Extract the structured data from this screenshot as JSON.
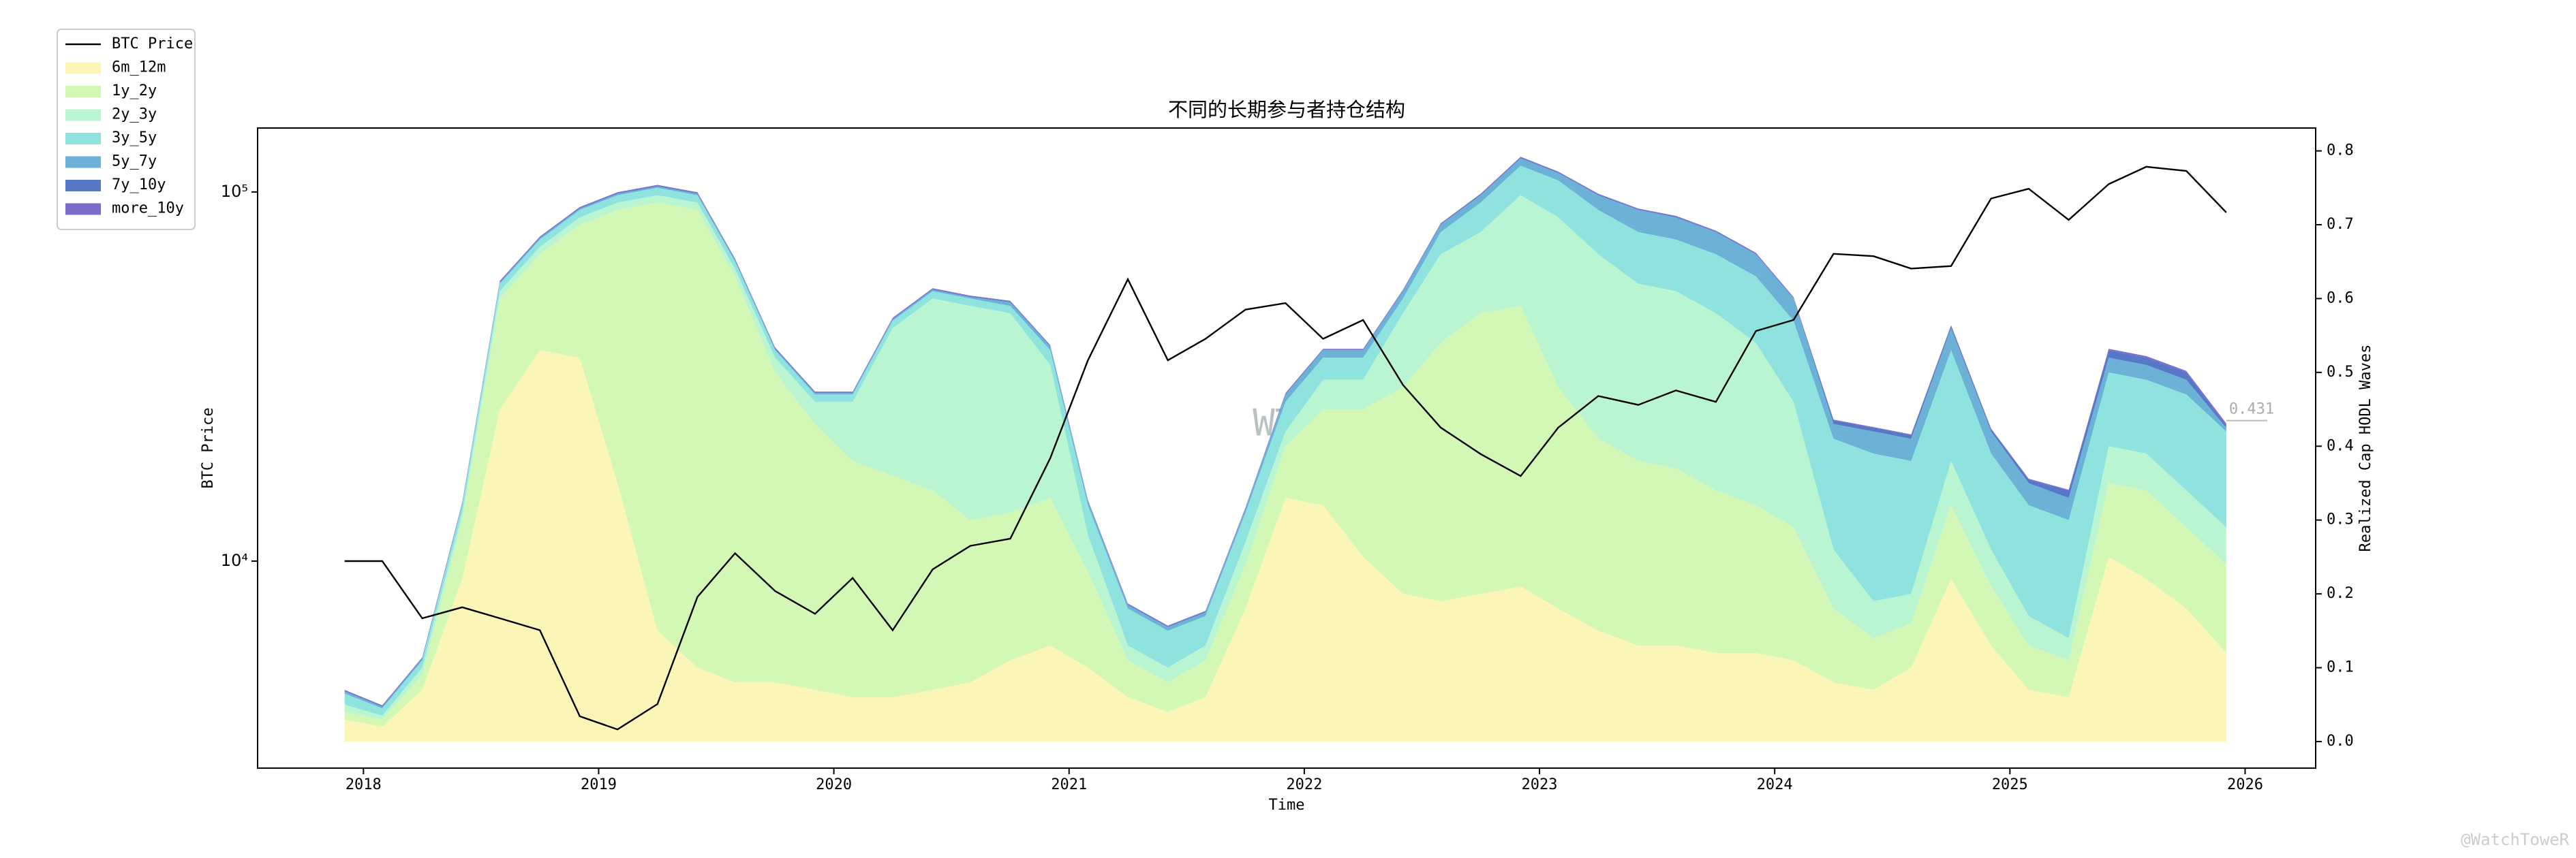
{
  "chart_data": {
    "type": "area",
    "title": "不同的长期参与者持仓结构",
    "xlabel": "Time",
    "ylabel": "BTC Price",
    "y2label": "Realized Cap HODL Waves",
    "annotation": "0.431",
    "watermark": "WTR",
    "credit": "@WatchToweR",
    "yscale": "log",
    "legend": "upper left",
    "x": [
      2017.92,
      2018.08,
      2018.25,
      2018.42,
      2018.58,
      2018.75,
      2018.92,
      2019.08,
      2019.25,
      2019.42,
      2019.58,
      2019.75,
      2019.92,
      2020.08,
      2020.25,
      2020.42,
      2020.58,
      2020.75,
      2020.92,
      2021.08,
      2021.25,
      2021.42,
      2021.58,
      2021.75,
      2021.92,
      2022.08,
      2022.25,
      2022.42,
      2022.58,
      2022.75,
      2022.92,
      2023.08,
      2023.25,
      2023.42,
      2023.58,
      2023.75,
      2023.92,
      2024.08,
      2024.25,
      2024.42,
      2024.58,
      2024.75,
      2024.92,
      2025.08,
      2025.25,
      2025.42,
      2025.58,
      2025.75,
      2025.92
    ],
    "series": [
      {
        "name": "BTC Price",
        "color": "#000000",
        "axis": "y",
        "values": [
          10000,
          10000,
          7000,
          7500,
          7000,
          6500,
          3800,
          3500,
          4100,
          8000,
          10500,
          8300,
          7200,
          9000,
          6500,
          9500,
          11000,
          11500,
          19000,
          35000,
          58000,
          35000,
          40000,
          48000,
          50000,
          40000,
          45000,
          30000,
          23000,
          19500,
          17000,
          23000,
          28000,
          26500,
          29000,
          27000,
          42000,
          45000,
          68000,
          67000,
          62000,
          63000,
          96000,
          102000,
          84000,
          105000,
          117000,
          114000,
          88000
        ]
      },
      {
        "name": "6m_12m",
        "color": "#fbf6b8",
        "axis": "y2",
        "values": [
          0.03,
          0.02,
          0.07,
          0.22,
          0.45,
          0.53,
          0.52,
          0.35,
          0.15,
          0.1,
          0.08,
          0.08,
          0.07,
          0.06,
          0.06,
          0.07,
          0.08,
          0.11,
          0.13,
          0.1,
          0.06,
          0.04,
          0.06,
          0.18,
          0.33,
          0.32,
          0.25,
          0.2,
          0.19,
          0.2,
          0.21,
          0.18,
          0.15,
          0.13,
          0.13,
          0.12,
          0.12,
          0.11,
          0.08,
          0.07,
          0.1,
          0.22,
          0.13,
          0.07,
          0.06,
          0.25,
          0.22,
          0.18,
          0.12
        ]
      },
      {
        "name": "1y_2y",
        "color": "#d3f7b4",
        "axis": "y2",
        "values": [
          0.01,
          0.01,
          0.02,
          0.08,
          0.15,
          0.13,
          0.18,
          0.37,
          0.58,
          0.62,
          0.55,
          0.42,
          0.36,
          0.32,
          0.3,
          0.27,
          0.22,
          0.2,
          0.2,
          0.13,
          0.05,
          0.04,
          0.05,
          0.06,
          0.07,
          0.13,
          0.2,
          0.28,
          0.35,
          0.38,
          0.38,
          0.3,
          0.26,
          0.25,
          0.24,
          0.22,
          0.2,
          0.18,
          0.1,
          0.07,
          0.06,
          0.1,
          0.08,
          0.06,
          0.05,
          0.1,
          0.12,
          0.11,
          0.12
        ]
      },
      {
        "name": "2y_3y",
        "color": "#baf5d2",
        "axis": "y2",
        "values": [
          0.01,
          0.005,
          0.01,
          0.01,
          0.01,
          0.01,
          0.01,
          0.01,
          0.01,
          0.01,
          0.01,
          0.02,
          0.03,
          0.08,
          0.2,
          0.26,
          0.29,
          0.27,
          0.18,
          0.05,
          0.02,
          0.02,
          0.02,
          0.03,
          0.02,
          0.04,
          0.04,
          0.1,
          0.12,
          0.11,
          0.15,
          0.23,
          0.25,
          0.24,
          0.24,
          0.24,
          0.22,
          0.17,
          0.08,
          0.05,
          0.04,
          0.06,
          0.05,
          0.04,
          0.03,
          0.05,
          0.05,
          0.05,
          0.05
        ]
      },
      {
        "name": "3y_5y",
        "color": "#8fe3df",
        "axis": "y2",
        "values": [
          0.015,
          0.01,
          0.01,
          0.01,
          0.01,
          0.01,
          0.01,
          0.01,
          0.01,
          0.01,
          0.01,
          0.01,
          0.01,
          0.01,
          0.01,
          0.01,
          0.01,
          0.01,
          0.02,
          0.04,
          0.05,
          0.05,
          0.04,
          0.04,
          0.04,
          0.03,
          0.03,
          0.02,
          0.03,
          0.04,
          0.04,
          0.05,
          0.06,
          0.07,
          0.07,
          0.08,
          0.09,
          0.11,
          0.15,
          0.2,
          0.18,
          0.15,
          0.13,
          0.15,
          0.16,
          0.1,
          0.1,
          0.13,
          0.13
        ]
      },
      {
        "name": "5y_7y",
        "color": "#6cb2d6",
        "axis": "y2",
        "values": [
          0.003,
          0.002,
          0.002,
          0.002,
          0.002,
          0.002,
          0.002,
          0.002,
          0.002,
          0.002,
          0.002,
          0.002,
          0.002,
          0.002,
          0.002,
          0.002,
          0.002,
          0.005,
          0.005,
          0.005,
          0.005,
          0.005,
          0.005,
          0.005,
          0.01,
          0.01,
          0.01,
          0.01,
          0.01,
          0.01,
          0.01,
          0.01,
          0.02,
          0.03,
          0.03,
          0.03,
          0.03,
          0.03,
          0.02,
          0.03,
          0.03,
          0.03,
          0.03,
          0.03,
          0.03,
          0.02,
          0.02,
          0.02,
          0.005
        ]
      },
      {
        "name": "7y_10y",
        "color": "#5678c6",
        "axis": "y2",
        "values": [
          0.001,
          0.001,
          0.001,
          0.001,
          0.001,
          0.001,
          0.001,
          0.001,
          0.001,
          0.001,
          0.001,
          0.001,
          0.001,
          0.001,
          0.001,
          0.001,
          0.001,
          0.001,
          0.001,
          0.001,
          0.001,
          0.001,
          0.001,
          0.001,
          0.001,
          0.001,
          0.001,
          0.001,
          0.001,
          0.001,
          0.001,
          0.001,
          0.001,
          0.001,
          0.001,
          0.001,
          0.001,
          0.001,
          0.005,
          0.005,
          0.005,
          0.003,
          0.003,
          0.005,
          0.01,
          0.01,
          0.01,
          0.01,
          0.003
        ]
      },
      {
        "name": "more_10y",
        "color": "#7b6ccc",
        "axis": "y2",
        "values": [
          0.001,
          0.001,
          0.001,
          0.001,
          0.001,
          0.001,
          0.001,
          0.001,
          0.001,
          0.001,
          0.001,
          0.001,
          0.001,
          0.001,
          0.001,
          0.001,
          0.001,
          0.001,
          0.001,
          0.001,
          0.001,
          0.001,
          0.001,
          0.001,
          0.001,
          0.001,
          0.001,
          0.001,
          0.001,
          0.001,
          0.001,
          0.001,
          0.001,
          0.001,
          0.001,
          0.001,
          0.001,
          0.001,
          0.001,
          0.001,
          0.001,
          0.001,
          0.001,
          0.001,
          0.001,
          0.002,
          0.002,
          0.002,
          0.003
        ]
      }
    ],
    "xlim": [
      2017.55,
      2026.3
    ],
    "xticks": [
      2018,
      2019,
      2020,
      2021,
      2022,
      2023,
      2024,
      2025,
      2026
    ],
    "ylim": [
      2750,
      149000
    ],
    "yticks": [
      {
        "value": 10000,
        "label": "10⁴"
      },
      {
        "value": 100000,
        "label": "10⁵"
      }
    ],
    "y2lim": [
      -0.036,
      0.831
    ],
    "y2ticks": [
      {
        "value": 0,
        "label": "0.0"
      },
      0.1,
      0.2,
      0.3,
      0.4,
      0.5,
      0.6,
      0.7,
      0.8
    ]
  }
}
